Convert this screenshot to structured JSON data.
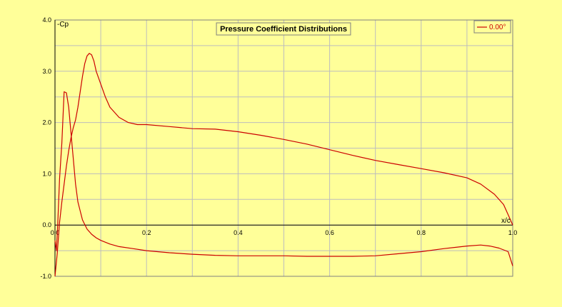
{
  "chart_data": {
    "type": "line",
    "title": "Pressure Coefficient Distributions",
    "xlabel": "x/c",
    "ylabel": "-Cp",
    "xlim": [
      0,
      1
    ],
    "ylim": [
      -1,
      4
    ],
    "x_ticks": [
      "0.0",
      "0.2",
      "0.4",
      "0.6",
      "0.8",
      "1.0"
    ],
    "y_ticks": [
      "-1.0",
      "0.0",
      "1.0",
      "2.0",
      "3.0",
      "4.0"
    ],
    "grid": true,
    "legend_position": "top-right",
    "colors": {
      "background": "#ffff99",
      "grid": "#bdbdbd",
      "series": "#cc0000",
      "axis": "#000000"
    },
    "series": [
      {
        "name": "0.00°",
        "segments": [
          {
            "part": "upper",
            "x": [
              0.0,
              0.005,
              0.01,
              0.015,
              0.02,
              0.025,
              0.03,
              0.035,
              0.04,
              0.045,
              0.05,
              0.055,
              0.06,
              0.065,
              0.07,
              0.075,
              0.08,
              0.085,
              0.09,
              0.1,
              0.11,
              0.12,
              0.14,
              0.16,
              0.18,
              0.2,
              0.25,
              0.3,
              0.35,
              0.4,
              0.45,
              0.5,
              0.55,
              0.6,
              0.65,
              0.7,
              0.75,
              0.8,
              0.85,
              0.9,
              0.93,
              0.96,
              0.98,
              0.99,
              1.0
            ],
            "y": [
              -1.0,
              -0.55,
              0.05,
              0.45,
              0.8,
              1.15,
              1.45,
              1.7,
              1.9,
              2.05,
              2.3,
              2.6,
              2.9,
              3.15,
              3.3,
              3.35,
              3.32,
              3.2,
              3.0,
              2.75,
              2.5,
              2.3,
              2.1,
              2.0,
              1.96,
              1.96,
              1.92,
              1.88,
              1.87,
              1.82,
              1.75,
              1.67,
              1.58,
              1.47,
              1.36,
              1.26,
              1.18,
              1.1,
              1.02,
              0.92,
              0.8,
              0.6,
              0.4,
              0.2,
              0.0
            ]
          },
          {
            "part": "lower",
            "x": [
              0.0,
              0.003,
              0.006,
              0.01,
              0.015,
              0.02,
              0.025,
              0.03,
              0.035,
              0.04,
              0.045,
              0.05,
              0.06,
              0.07,
              0.08,
              0.09,
              0.1,
              0.12,
              0.14,
              0.17,
              0.2,
              0.25,
              0.3,
              0.35,
              0.4,
              0.45,
              0.5,
              0.55,
              0.6,
              0.65,
              0.7,
              0.75,
              0.8,
              0.85,
              0.9,
              0.93,
              0.95,
              0.97,
              0.99,
              1.0
            ],
            "y": [
              -0.3,
              -0.5,
              0.0,
              0.9,
              1.6,
              2.6,
              2.58,
              2.3,
              1.8,
              1.3,
              0.8,
              0.45,
              0.1,
              -0.08,
              -0.18,
              -0.25,
              -0.3,
              -0.37,
              -0.42,
              -0.46,
              -0.5,
              -0.54,
              -0.57,
              -0.59,
              -0.6,
              -0.6,
              -0.6,
              -0.61,
              -0.61,
              -0.61,
              -0.6,
              -0.56,
              -0.52,
              -0.46,
              -0.41,
              -0.39,
              -0.41,
              -0.45,
              -0.52,
              -0.8
            ]
          }
        ]
      }
    ]
  }
}
